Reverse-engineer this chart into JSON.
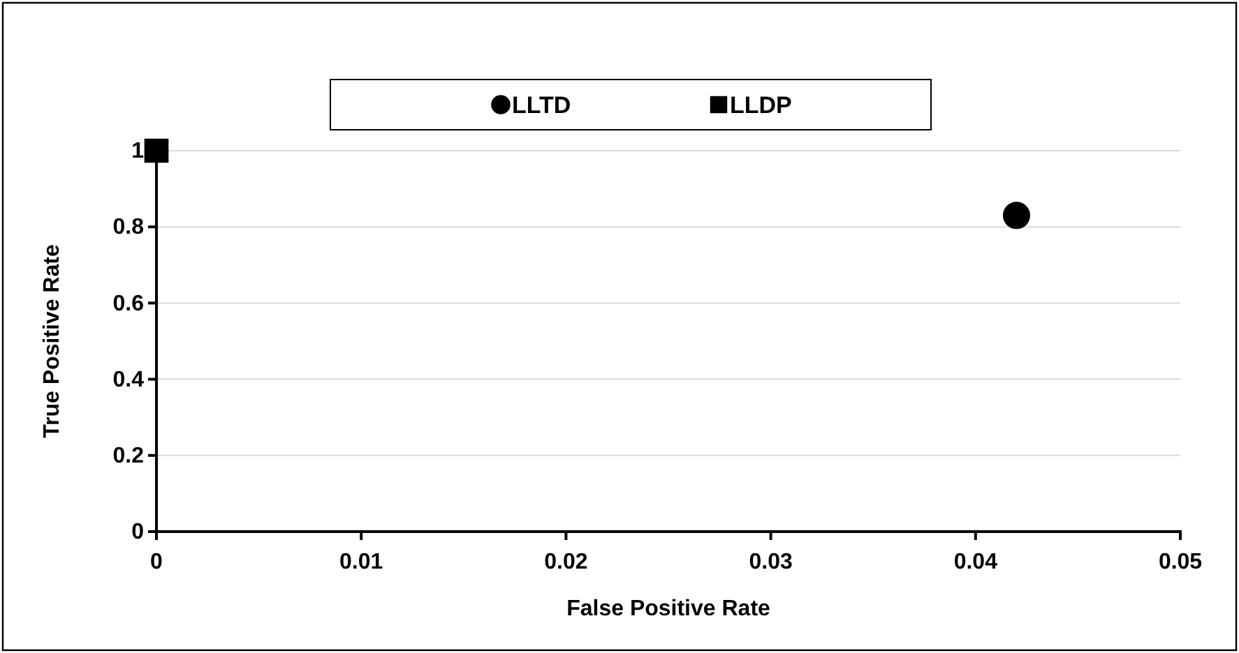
{
  "chart_data": {
    "type": "scatter",
    "xlabel": "False Positive Rate",
    "ylabel": "True Positive Rate",
    "xlim": [
      0,
      0.05
    ],
    "xticks": [
      0,
      0.01,
      0.02,
      0.03,
      0.04,
      0.05
    ],
    "ylim": [
      0,
      1
    ],
    "yticks": [
      0,
      0.2,
      0.4,
      0.6,
      0.8,
      1
    ],
    "grid": "y",
    "legend": "top",
    "series": [
      {
        "name": "LLTD",
        "color": "#000000",
        "marker": "circle",
        "x": [
          0.042
        ],
        "values": [
          0.83
        ]
      },
      {
        "name": "LLDP",
        "color": "#000000",
        "marker": "square",
        "x": [
          0
        ],
        "values": [
          1
        ]
      }
    ]
  }
}
